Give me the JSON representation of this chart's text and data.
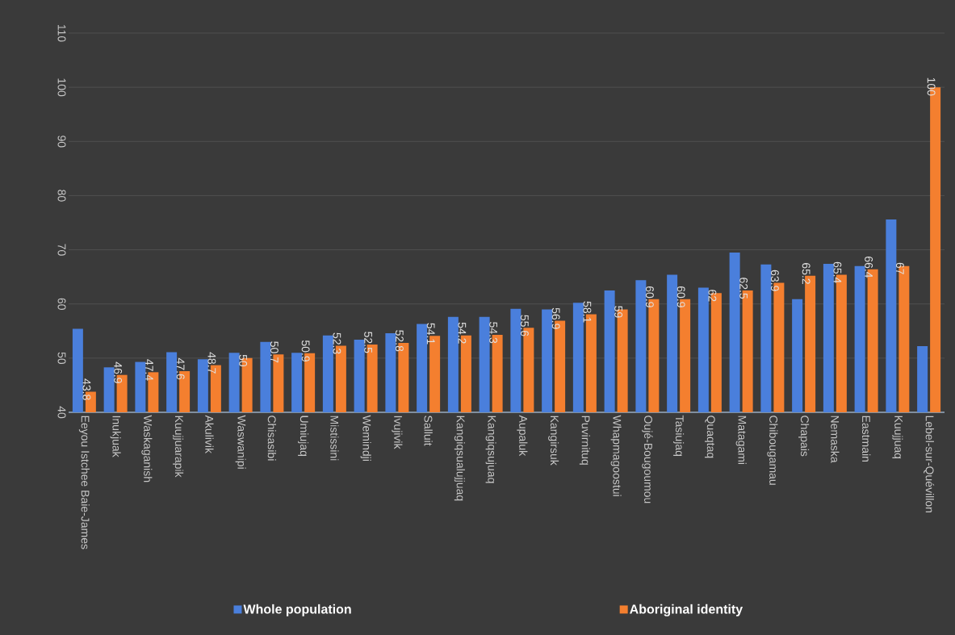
{
  "chart_data": {
    "type": "bar",
    "categories": [
      "Eeyou Istchee Baie-James",
      "Inukjuak",
      "Waskaganish",
      "Kuujjuarapik",
      "Akulivik",
      "Waswanipi",
      "Chisasibi",
      "Umiujaq",
      "Mistissini",
      "Wemindji",
      "Ivujivik",
      "Salluit",
      "Kangiqsualujjuaq",
      "Kangiqsujuaq",
      "Aupaluk",
      "Kangirsuk",
      "Puvirnituq",
      "Whapmagoostui",
      "Oujé-Bougoumou",
      "Tasiujaq",
      "Quaqtaq",
      "Matagami",
      "Chibougamau",
      "Chapais",
      "Nemaska",
      "Eastmain",
      "Kuujjuaq",
      "Lebel-sur-Quévillon"
    ],
    "series": [
      {
        "name": "Whole population",
        "color": "#4a7fdc",
        "values": [
          55.4,
          48.3,
          49.3,
          51.1,
          49.8,
          51.0,
          53.0,
          51.0,
          54.2,
          53.4,
          54.6,
          56.3,
          57.6,
          57.6,
          59.1,
          59.0,
          60.2,
          62.5,
          64.4,
          65.4,
          63.0,
          69.5,
          67.3,
          60.9,
          67.4,
          67.0,
          75.6,
          52.2
        ]
      },
      {
        "name": "Aboriginal identity",
        "color": "#f47f2f",
        "values": [
          43.8,
          46.9,
          47.4,
          47.6,
          48.7,
          50,
          50.7,
          50.9,
          52.3,
          52.5,
          52.8,
          54.1,
          54.2,
          54.3,
          55.6,
          56.9,
          58.1,
          59,
          60.9,
          60.9,
          62,
          62.5,
          63.9,
          65.2,
          65.4,
          66.4,
          67,
          100
        ],
        "value_labels": [
          "43.8",
          "46.9",
          "47.4",
          "47.6",
          "48.7",
          "50",
          "50.7",
          "50.9",
          "52.3",
          "52.5",
          "52.8",
          "54.1",
          "54.2",
          "54.3",
          "55.6",
          "56.9",
          "58.1",
          "59",
          "60.9",
          "60.9",
          "62",
          "62.5",
          "63.9",
          "65.2",
          "65.4",
          "66.4",
          "67",
          "100"
        ]
      }
    ],
    "ylim": [
      40,
      110
    ],
    "yticks": [
      40,
      50,
      60,
      70,
      80,
      90,
      100,
      110
    ],
    "grid": "y",
    "legend": "bottom"
  }
}
